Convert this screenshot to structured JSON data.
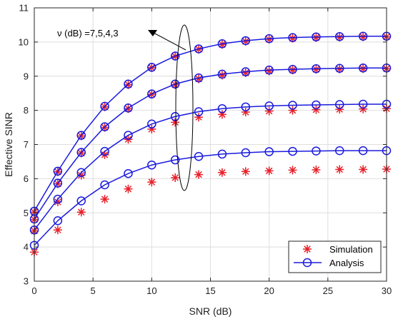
{
  "chart_data": {
    "type": "line",
    "title": "",
    "xlabel": "SNR (dB)",
    "ylabel": "Effective SINR",
    "xlim": [
      0,
      30
    ],
    "ylim": [
      3,
      11
    ],
    "xticks": [
      0,
      5,
      10,
      15,
      20,
      25,
      30
    ],
    "yticks": [
      3,
      4,
      5,
      6,
      7,
      8,
      9,
      10,
      11
    ],
    "grid": true,
    "legend_position": "bottom-right",
    "annotation": "ν (dB) =7,5,4,3",
    "x": [
      0,
      2,
      4,
      6,
      8,
      10,
      12,
      14,
      16,
      18,
      20,
      22,
      24,
      26,
      28,
      30
    ],
    "series": [
      {
        "name": "Simulation",
        "style": "red-asterisk-markers",
        "color": "#e8202a",
        "curves": [
          [
            5.02,
            6.2,
            7.25,
            8.1,
            8.75,
            9.25,
            9.58,
            9.79,
            9.93,
            10.02,
            10.08,
            10.11,
            10.13,
            10.14,
            10.15,
            10.15
          ],
          [
            4.8,
            5.85,
            6.75,
            7.5,
            8.05,
            8.47,
            8.75,
            8.92,
            9.03,
            9.1,
            9.15,
            9.18,
            9.2,
            9.21,
            9.22,
            9.22
          ],
          [
            4.47,
            5.32,
            6.1,
            6.7,
            7.15,
            7.45,
            7.65,
            7.8,
            7.88,
            7.95,
            7.98,
            8.0,
            8.02,
            8.03,
            8.04,
            8.05
          ],
          [
            3.85,
            4.5,
            5.02,
            5.4,
            5.7,
            5.9,
            6.03,
            6.12,
            6.18,
            6.21,
            6.23,
            6.25,
            6.26,
            6.27,
            6.27,
            6.28
          ]
        ]
      },
      {
        "name": "Analysis",
        "style": "blue-line-circle-markers",
        "color": "#1a1adf",
        "curves": [
          [
            5.05,
            6.22,
            7.27,
            8.12,
            8.77,
            9.26,
            9.59,
            9.8,
            9.95,
            10.04,
            10.1,
            10.13,
            10.15,
            10.16,
            10.17,
            10.17
          ],
          [
            4.82,
            5.87,
            6.77,
            7.52,
            8.07,
            8.48,
            8.77,
            8.95,
            9.06,
            9.13,
            9.18,
            9.2,
            9.22,
            9.23,
            9.24,
            9.24
          ],
          [
            4.5,
            5.4,
            6.18,
            6.8,
            7.27,
            7.6,
            7.82,
            7.96,
            8.05,
            8.1,
            8.13,
            8.15,
            8.16,
            8.17,
            8.18,
            8.18
          ],
          [
            4.05,
            4.77,
            5.35,
            5.82,
            6.15,
            6.4,
            6.55,
            6.65,
            6.72,
            6.76,
            6.79,
            6.8,
            6.81,
            6.82,
            6.82,
            6.82
          ]
        ]
      }
    ]
  }
}
